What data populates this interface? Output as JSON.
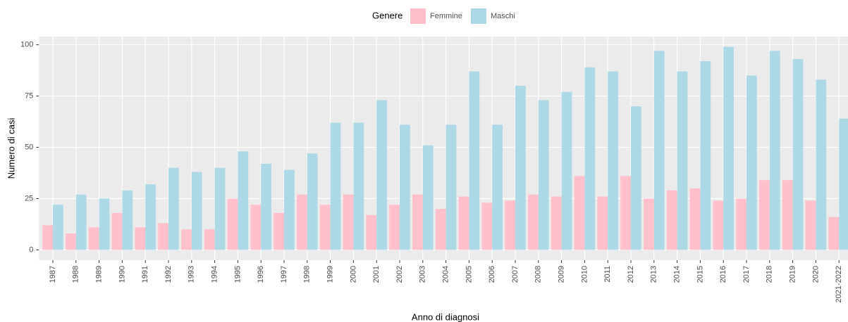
{
  "chart_data": {
    "type": "bar",
    "legend_title": "Genere",
    "x_label": "Anno di diagnosi",
    "y_label": "Numero di casi",
    "categories": [
      "1987",
      "1988",
      "1989",
      "1990",
      "1991",
      "1992",
      "1993",
      "1994",
      "1995",
      "1996",
      "1997",
      "1998",
      "1999",
      "2000",
      "2001",
      "2002",
      "2003",
      "2004",
      "2005",
      "2006",
      "2007",
      "2008",
      "2009",
      "2010",
      "2011",
      "2012",
      "2013",
      "2014",
      "2015",
      "2016",
      "2017",
      "2018",
      "2019",
      "2020",
      "2021-2022"
    ],
    "series": [
      {
        "name": "Femmine",
        "color": "#ffc0cb",
        "values": [
          12,
          8,
          11,
          18,
          11,
          13,
          10,
          10,
          25,
          22,
          18,
          27,
          22,
          27,
          17,
          22,
          27,
          20,
          26,
          23,
          24,
          27,
          26,
          36,
          26,
          36,
          25,
          29,
          30,
          24,
          25,
          34,
          34,
          24,
          16
        ]
      },
      {
        "name": "Maschi",
        "color": "#add8e6",
        "values": [
          22,
          27,
          25,
          29,
          32,
          40,
          38,
          40,
          48,
          42,
          39,
          47,
          62,
          62,
          73,
          61,
          51,
          61,
          87,
          61,
          80,
          73,
          77,
          89,
          87,
          70,
          97,
          87,
          92,
          99,
          85,
          97,
          93,
          83,
          64
        ]
      }
    ],
    "ylim": [
      -5,
      104
    ],
    "yticks": [
      0,
      25,
      50,
      75,
      100
    ],
    "grid": true,
    "legend": "top"
  }
}
